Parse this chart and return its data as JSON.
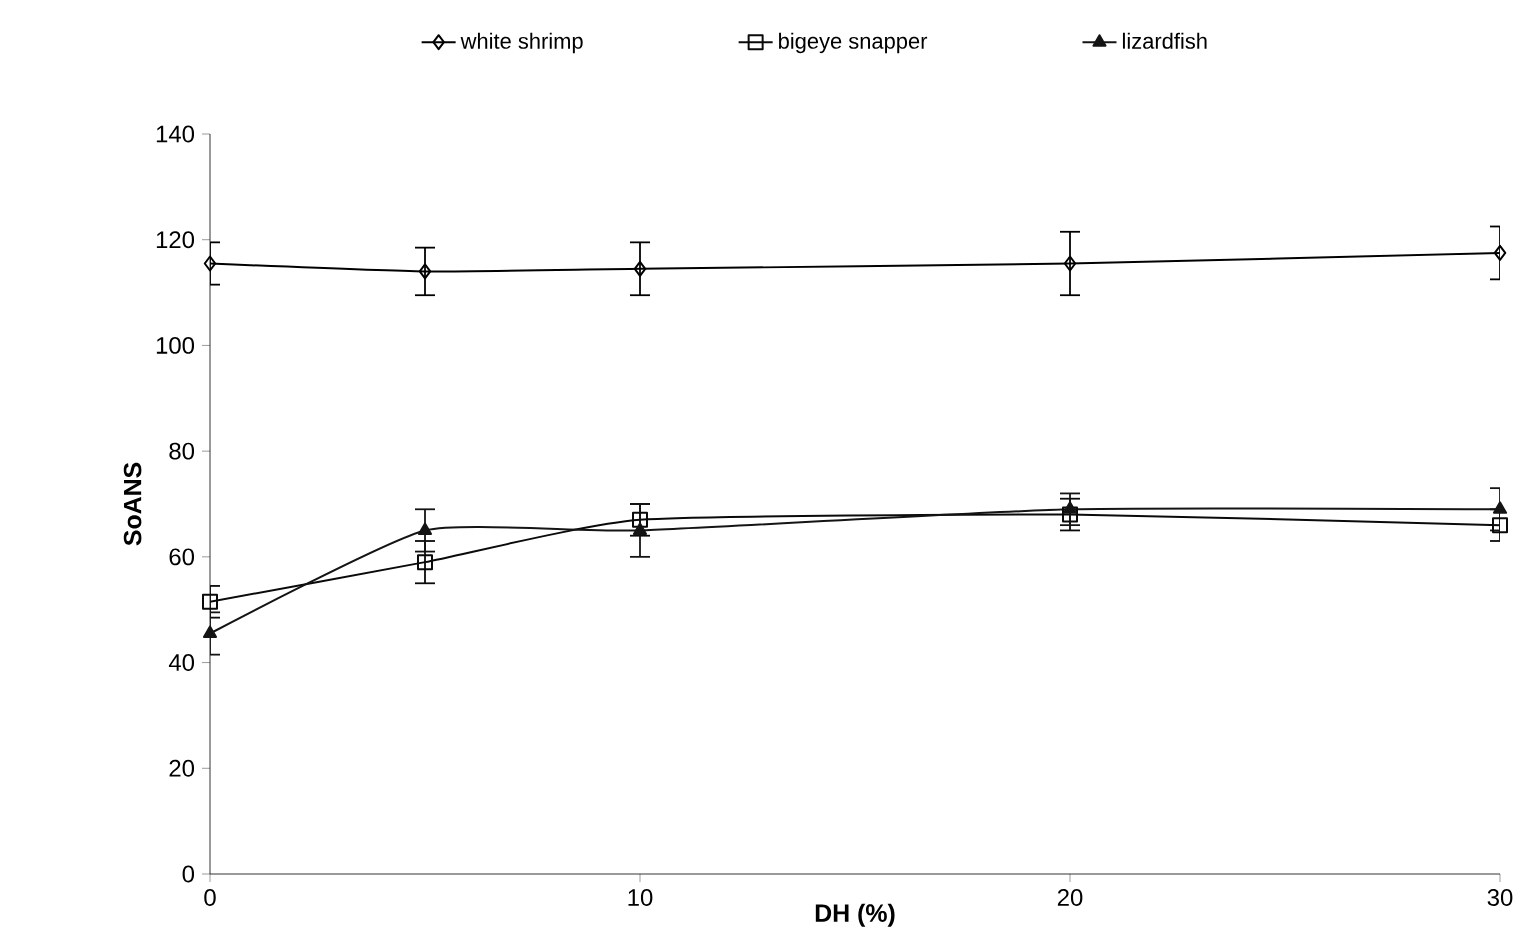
{
  "chart_data": {
    "type": "line",
    "xlabel": "DH (%)",
    "ylabel": "SoANS",
    "x": [
      0,
      5,
      10,
      20,
      30
    ],
    "series": [
      {
        "name": "white shrimp",
        "color": "#000000",
        "marker": "diamond",
        "values": [
          115.5,
          114,
          114.5,
          115.5,
          117.5
        ],
        "errors": [
          4,
          4.5,
          5,
          6,
          5
        ]
      },
      {
        "name": "bigeye snapper",
        "color": "#0a0a0a",
        "marker": "square",
        "values": [
          51.5,
          59,
          67,
          68,
          66
        ],
        "errors": [
          3,
          4,
          3,
          3,
          3
        ]
      },
      {
        "name": "lizardfish",
        "color": "#141414",
        "marker": "triangle",
        "values": [
          45.5,
          65,
          65,
          69,
          69
        ],
        "errors": [
          4,
          4,
          5,
          3,
          4
        ]
      }
    ],
    "xlim": [
      0,
      30
    ],
    "xticks": [
      0,
      10,
      20,
      30
    ],
    "ylim": [
      0,
      140
    ],
    "yticks": [
      0,
      20,
      40,
      60,
      80,
      100,
      120,
      140
    ],
    "grid": false,
    "legend": "top",
    "line_style": "solid"
  }
}
